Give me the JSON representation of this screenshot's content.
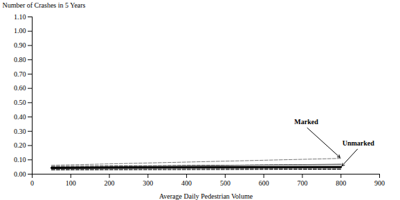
{
  "chart_data": {
    "type": "line",
    "xlabel": "Average Daily Pedestrian Volume",
    "ylabel": "Number of Crashes in 5 Years",
    "x": [
      50,
      800
    ],
    "series": [
      {
        "name": "Marked",
        "color": "#777777",
        "line_style": "solid",
        "values": [
          0.048,
          0.068
        ],
        "ci_upper": [
          0.062,
          0.11
        ],
        "ci_lower": [
          0.034,
          0.04
        ]
      },
      {
        "name": "Unmarked",
        "color": "#000000",
        "line_style": "solid",
        "values": [
          0.044,
          0.05
        ],
        "ci_upper": [
          0.054,
          0.068
        ],
        "ci_lower": [
          0.03,
          0.034
        ]
      }
    ],
    "xlim": [
      0,
      900
    ],
    "ylim": [
      0.0,
      1.1
    ],
    "xticks": [
      0,
      100,
      200,
      300,
      400,
      500,
      600,
      700,
      800,
      900
    ],
    "yticks": [
      {
        "value": 0,
        "label": "0.00"
      },
      {
        "value": 0.1,
        "label": "0.10"
      },
      {
        "value": 0.2,
        "label": "0.20"
      },
      {
        "value": 0.3,
        "label": "0.30"
      },
      {
        "value": 0.4,
        "label": "0.40"
      },
      {
        "value": 0.5,
        "label": "0.50"
      },
      {
        "value": 0.6,
        "label": "0.60"
      },
      {
        "value": 0.7,
        "label": "0.70"
      },
      {
        "value": 0.8,
        "label": "0.80"
      },
      {
        "value": 0.9,
        "label": "0.90"
      },
      {
        "value": 1,
        "label": "1.00"
      },
      {
        "value": 1.1,
        "label": "1.10"
      }
    ],
    "grid": false
  }
}
